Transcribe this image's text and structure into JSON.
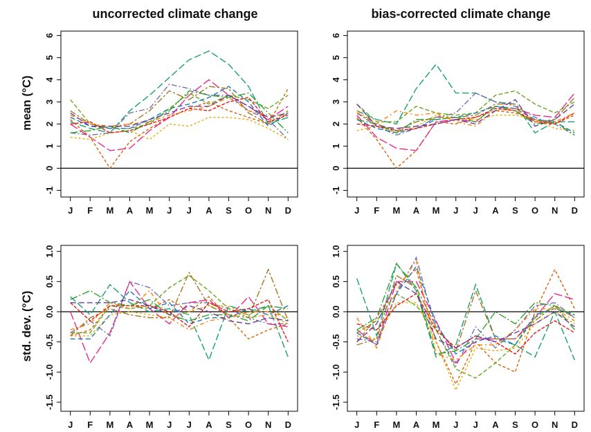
{
  "figure": {
    "col_titles": [
      "uncorrected climate change",
      "bias-corrected climate change"
    ],
    "row_labels": [
      "mean (°C)",
      "std. dev. (°C)"
    ]
  },
  "palette": [
    "#1b9e77",
    "#d95f02",
    "#7570b3",
    "#e7298a",
    "#66a61e",
    "#e6ab02",
    "#a6761d",
    "#1f78b4",
    "#e31a1c",
    "#33a02c",
    "#ff7f00",
    "#6a3d9a",
    "#b15928",
    "#8c2d04"
  ],
  "chart_data": [
    {
      "type": "line",
      "title": "uncorrected climate change",
      "xlabel": "",
      "ylabel": "mean (°C)",
      "categories": [
        "J",
        "F",
        "M",
        "A",
        "M",
        "J",
        "J",
        "A",
        "S",
        "O",
        "N",
        "D"
      ],
      "ylim": [
        -1.3,
        6.2
      ],
      "yticks": [
        -1,
        0,
        1,
        2,
        3,
        4,
        5,
        6
      ],
      "reference_line": 0,
      "series": [
        {
          "values": [
            2.1,
            1.8,
            1.6,
            2.6,
            3.3,
            4.1,
            4.9,
            5.3,
            4.7,
            3.7,
            2.0,
            2.3
          ]
        },
        {
          "values": [
            2.2,
            1.4,
            0.0,
            1.2,
            1.8,
            2.3,
            2.7,
            3.0,
            2.6,
            2.3,
            2.0,
            3.6
          ]
        },
        {
          "values": [
            1.6,
            1.5,
            1.6,
            2.5,
            2.7,
            3.8,
            3.6,
            3.3,
            3.3,
            2.6,
            2.2,
            1.3
          ]
        },
        {
          "values": [
            2.0,
            1.4,
            0.8,
            0.9,
            1.7,
            2.3,
            3.3,
            4.0,
            3.3,
            2.8,
            2.2,
            2.8
          ]
        },
        {
          "values": [
            3.1,
            2.0,
            1.8,
            1.8,
            2.0,
            2.7,
            3.4,
            2.9,
            3.3,
            3.1,
            2.7,
            3.3
          ]
        },
        {
          "values": [
            1.4,
            1.3,
            1.6,
            1.7,
            1.3,
            2.0,
            1.9,
            2.3,
            2.3,
            2.2,
            1.8,
            1.3
          ]
        },
        {
          "values": [
            2.6,
            2.0,
            1.8,
            2.0,
            2.6,
            3.5,
            3.1,
            3.7,
            3.6,
            2.5,
            2.0,
            2.6
          ]
        },
        {
          "values": [
            2.3,
            1.9,
            1.8,
            1.8,
            2.2,
            2.7,
            2.9,
            3.2,
            3.7,
            3.0,
            1.9,
            2.5
          ]
        },
        {
          "values": [
            2.0,
            2.1,
            1.6,
            1.7,
            2.0,
            2.3,
            2.7,
            2.6,
            3.0,
            3.2,
            2.1,
            2.4
          ]
        },
        {
          "values": [
            1.6,
            1.7,
            1.9,
            1.6,
            2.1,
            2.6,
            3.5,
            3.3,
            3.2,
            3.4,
            2.5,
            1.6
          ]
        },
        {
          "values": [
            2.4,
            2.0,
            1.9,
            2.0,
            2.1,
            2.4,
            2.6,
            2.8,
            3.2,
            2.6,
            2.4,
            2.4
          ]
        },
        {
          "values": [
            2.5,
            1.9,
            1.9,
            1.9,
            2.2,
            2.5,
            2.8,
            2.8,
            3.3,
            2.8,
            2.3,
            2.5
          ]
        }
      ]
    },
    {
      "type": "line",
      "title": "bias-corrected climate change",
      "xlabel": "",
      "ylabel": "",
      "categories": [
        "J",
        "F",
        "M",
        "A",
        "M",
        "J",
        "J",
        "A",
        "S",
        "O",
        "N",
        "D"
      ],
      "ylim": [
        -1.3,
        6.2
      ],
      "yticks": [
        -1,
        0,
        1,
        2,
        3,
        4,
        5,
        6
      ],
      "reference_line": 0,
      "series": [
        {
          "values": [
            2.6,
            2.2,
            2.0,
            3.6,
            4.7,
            3.4,
            3.4,
            3.0,
            2.9,
            1.6,
            2.1,
            2.1
          ]
        },
        {
          "values": [
            2.3,
            1.3,
            0.0,
            0.8,
            2.1,
            2.0,
            2.3,
            2.6,
            2.5,
            2.2,
            2.0,
            2.4
          ]
        },
        {
          "values": [
            2.5,
            1.9,
            1.5,
            1.8,
            2.3,
            2.5,
            3.4,
            3.0,
            2.8,
            2.3,
            2.0,
            1.5
          ]
        },
        {
          "values": [
            2.4,
            1.4,
            0.9,
            0.8,
            2.1,
            2.2,
            2.1,
            2.8,
            2.7,
            2.4,
            2.3,
            3.4
          ]
        },
        {
          "values": [
            2.9,
            2.1,
            2.1,
            2.8,
            2.5,
            2.4,
            2.5,
            3.3,
            3.5,
            2.9,
            2.5,
            3.0
          ]
        },
        {
          "values": [
            1.7,
            1.9,
            1.6,
            1.9,
            2.4,
            2.3,
            2.2,
            2.4,
            2.4,
            2.2,
            1.8,
            1.7
          ]
        },
        {
          "values": [
            2.5,
            2.0,
            1.7,
            2.1,
            2.3,
            2.3,
            2.4,
            2.9,
            2.9,
            2.1,
            2.2,
            3.2
          ]
        },
        {
          "values": [
            2.2,
            1.8,
            1.6,
            1.8,
            2.2,
            2.3,
            2.5,
            2.8,
            2.7,
            2.2,
            2.1,
            1.6
          ]
        },
        {
          "values": [
            2.0,
            1.9,
            1.7,
            1.8,
            2.0,
            2.2,
            2.3,
            2.7,
            2.6,
            2.1,
            2.0,
            2.5
          ]
        },
        {
          "values": [
            2.2,
            2.0,
            1.6,
            2.2,
            2.2,
            2.3,
            2.1,
            2.8,
            2.6,
            2.0,
            2.1,
            1.5
          ]
        },
        {
          "values": [
            2.6,
            2.0,
            2.6,
            2.4,
            2.5,
            2.1,
            1.9,
            2.6,
            2.7,
            2.1,
            2.1,
            2.5
          ]
        },
        {
          "values": [
            2.9,
            1.9,
            1.8,
            1.9,
            2.0,
            2.2,
            2.0,
            2.6,
            3.1,
            1.9,
            2.2,
            2.9
          ]
        }
      ]
    },
    {
      "type": "line",
      "title": "",
      "xlabel": "",
      "ylabel": "std. dev. (°C)",
      "categories": [
        "J",
        "F",
        "M",
        "A",
        "M",
        "J",
        "J",
        "A",
        "S",
        "O",
        "N",
        "D"
      ],
      "ylim": [
        -1.65,
        1.1
      ],
      "yticks": [
        -1.5,
        -1.0,
        -0.5,
        0.0,
        0.5,
        1.0
      ],
      "reference_line": 0,
      "series": [
        {
          "values": [
            0.25,
            -0.05,
            0.45,
            0.15,
            0.0,
            0.05,
            -0.05,
            -0.8,
            0.1,
            0.0,
            0.1,
            -0.75
          ]
        },
        {
          "values": [
            -0.4,
            -0.3,
            0.1,
            0.1,
            0.05,
            0.2,
            0.0,
            0.25,
            -0.1,
            -0.45,
            -0.3,
            -0.2
          ]
        },
        {
          "values": [
            -0.35,
            -0.15,
            -0.4,
            0.5,
            0.4,
            0.1,
            0.15,
            0.15,
            0.05,
            -0.1,
            -0.2,
            -0.2
          ]
        },
        {
          "values": [
            0.0,
            -0.85,
            -0.35,
            0.5,
            0.05,
            -0.2,
            0.15,
            0.2,
            -0.1,
            0.25,
            -0.2,
            -0.25
          ]
        },
        {
          "values": [
            -0.35,
            -0.35,
            0.1,
            0.05,
            0.1,
            0.4,
            0.6,
            0.35,
            0.05,
            -0.05,
            0.1,
            -0.15
          ]
        },
        {
          "values": [
            -0.4,
            -0.4,
            -0.05,
            0.0,
            -0.05,
            -0.1,
            0.0,
            0.1,
            0.1,
            -0.1,
            -0.05,
            -0.2
          ]
        },
        {
          "values": [
            -0.4,
            -0.1,
            0.05,
            -0.05,
            -0.1,
            -0.1,
            0.65,
            0.1,
            -0.05,
            -0.1,
            0.7,
            -0.15
          ]
        },
        {
          "values": [
            -0.45,
            -0.45,
            -0.05,
            0.35,
            0.05,
            0.15,
            -0.2,
            -0.1,
            -0.1,
            0.05,
            -0.05,
            0.1
          ]
        },
        {
          "values": [
            0.15,
            -0.15,
            0.1,
            0.1,
            0.1,
            0.0,
            -0.25,
            0.15,
            0.0,
            0.05,
            0.2,
            -0.5
          ]
        },
        {
          "values": [
            0.2,
            0.35,
            0.15,
            0.1,
            0.2,
            -0.05,
            -0.15,
            -0.05,
            -0.05,
            -0.15,
            0.1,
            0.05
          ]
        },
        {
          "values": [
            -0.3,
            -0.2,
            0.15,
            0.05,
            0.35,
            -0.1,
            -0.3,
            -0.15,
            -0.1,
            0.0,
            0.0,
            -0.1
          ]
        },
        {
          "values": [
            0.15,
            0.15,
            0.15,
            0.2,
            0.1,
            -0.05,
            0.1,
            0.0,
            -0.15,
            -0.2,
            -0.1,
            -0.15
          ]
        }
      ]
    },
    {
      "type": "line",
      "title": "",
      "xlabel": "",
      "ylabel": "",
      "categories": [
        "J",
        "F",
        "M",
        "A",
        "M",
        "J",
        "J",
        "A",
        "S",
        "O",
        "N",
        "D"
      ],
      "ylim": [
        -1.65,
        1.1
      ],
      "yticks": [
        -1.5,
        -1.0,
        -0.5,
        0.0,
        0.5,
        1.0
      ],
      "reference_line": 0,
      "series": [
        {
          "values": [
            0.55,
            -0.4,
            0.8,
            0.35,
            -0.75,
            -0.55,
            0.45,
            -0.45,
            -0.55,
            -0.75,
            0.0,
            -0.8
          ]
        },
        {
          "values": [
            -0.5,
            -0.1,
            0.45,
            0.7,
            -0.5,
            -1.2,
            -0.5,
            -0.85,
            -1.0,
            0.0,
            0.7,
            0.05
          ]
        },
        {
          "values": [
            -0.45,
            -0.5,
            0.3,
            0.9,
            -0.3,
            -0.9,
            -0.25,
            -0.6,
            -0.3,
            0.1,
            0.15,
            -0.1
          ]
        },
        {
          "values": [
            -0.3,
            -0.55,
            0.5,
            0.5,
            -0.15,
            -0.85,
            -0.45,
            -0.45,
            -0.45,
            -0.1,
            0.3,
            0.2
          ]
        },
        {
          "values": [
            -0.35,
            -0.15,
            0.3,
            0.1,
            -0.3,
            -0.95,
            -1.1,
            -0.85,
            -0.55,
            -0.1,
            0.1,
            -0.05
          ]
        },
        {
          "values": [
            -0.4,
            -0.45,
            0.15,
            0.15,
            -0.5,
            -1.3,
            -0.6,
            -0.65,
            -0.6,
            -0.2,
            0.0,
            -0.2
          ]
        },
        {
          "values": [
            -0.55,
            -0.45,
            0.6,
            0.4,
            -0.25,
            -0.65,
            0.35,
            -0.45,
            -0.45,
            -0.15,
            0.1,
            -0.1
          ]
        },
        {
          "values": [
            -0.35,
            -0.55,
            0.3,
            0.75,
            -0.2,
            -0.7,
            -0.5,
            -0.4,
            -0.55,
            -0.05,
            0.05,
            -0.05
          ]
        },
        {
          "values": [
            -0.2,
            -0.3,
            0.1,
            0.3,
            -0.3,
            -0.6,
            -0.4,
            -0.5,
            -0.7,
            -0.35,
            -0.15,
            -0.35
          ]
        },
        {
          "values": [
            -0.3,
            -0.1,
            0.8,
            0.4,
            -0.7,
            -0.65,
            -0.45,
            0.0,
            -0.2,
            0.15,
            0.1,
            -0.3
          ]
        },
        {
          "values": [
            -0.1,
            -0.6,
            0.35,
            0.85,
            -0.7,
            -0.8,
            -0.55,
            -0.55,
            -0.3,
            0.05,
            0.05,
            -0.15
          ]
        },
        {
          "values": [
            -0.5,
            -0.2,
            0.5,
            0.3,
            -0.45,
            -0.6,
            -0.4,
            -0.5,
            -0.35,
            -0.2,
            0.0,
            -0.25
          ]
        }
      ]
    }
  ]
}
